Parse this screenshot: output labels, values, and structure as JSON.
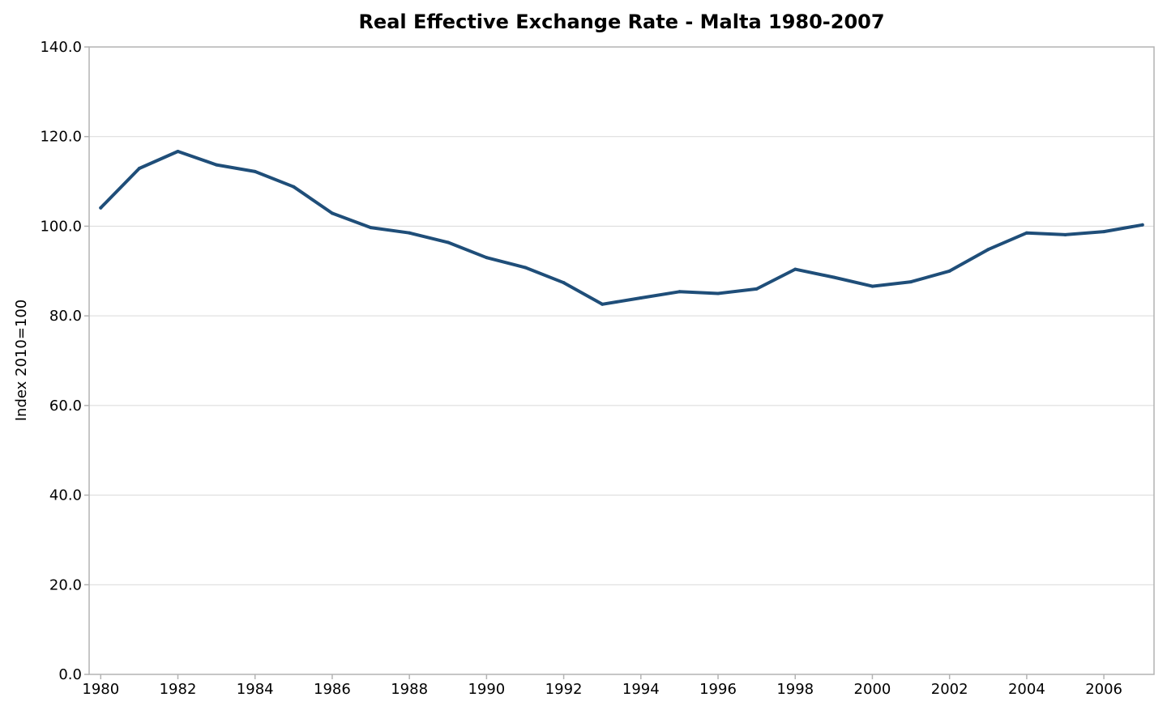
{
  "chart_data": {
    "type": "line",
    "title": "Real Effective Exchange Rate - Malta 1980-2007",
    "xlabel": "",
    "ylabel": "Index 2010=100",
    "x": [
      1980,
      1981,
      1982,
      1983,
      1984,
      1985,
      1986,
      1987,
      1988,
      1989,
      1990,
      1991,
      1992,
      1993,
      1994,
      1995,
      1996,
      1997,
      1998,
      1999,
      2000,
      2001,
      2002,
      2003,
      2004,
      2005,
      2006,
      2007
    ],
    "xticks": [
      "1980",
      "1982",
      "1984",
      "1986",
      "1988",
      "1990",
      "1992",
      "1994",
      "1996",
      "1998",
      "2000",
      "2002",
      "2004",
      "2006"
    ],
    "yticks": [
      "0.0",
      "20.0",
      "40.0",
      "60.0",
      "80.0",
      "100.0",
      "120.0",
      "140.0"
    ],
    "xlim": [
      1979.7,
      2007.3
    ],
    "ylim": [
      0,
      140
    ],
    "grid": true,
    "legend": "none",
    "series": [
      {
        "color": "#1f4e79",
        "values": [
          104.1,
          112.9,
          116.7,
          113.7,
          112.2,
          108.8,
          102.9,
          99.7,
          98.5,
          96.4,
          93.0,
          90.8,
          87.4,
          82.6,
          84.0,
          85.4,
          85.0,
          86.0,
          90.4,
          88.6,
          86.6,
          87.6,
          90.0,
          94.8,
          98.5,
          98.1,
          98.8,
          100.3
        ]
      }
    ]
  }
}
